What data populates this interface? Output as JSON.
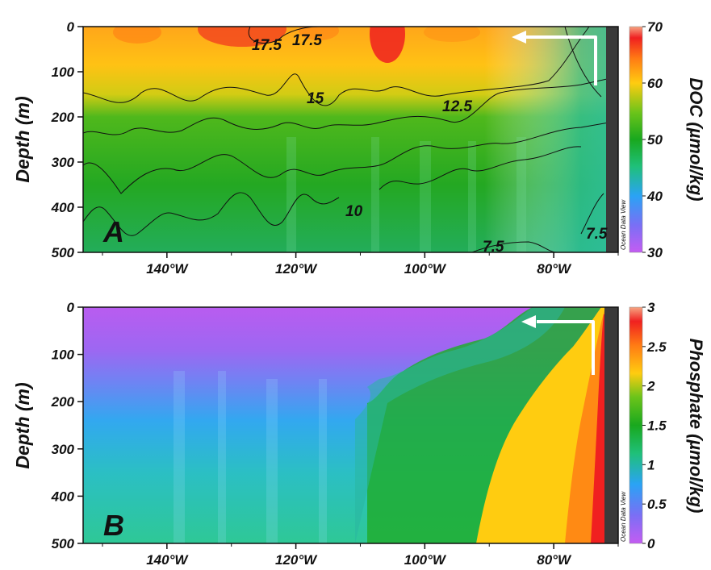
{
  "chart_data": [
    {
      "type": "heatmap",
      "panel_label": "A",
      "ylabel": "Depth (m)",
      "colorbar_label": "DOC (µmol/kg)",
      "colorbar_ticks": [
        30,
        40,
        50,
        60,
        70
      ],
      "x_ticks": [
        "140°W",
        "120°W",
        "100°W",
        "80°W"
      ],
      "y_ticks": [
        "0",
        "100",
        "200",
        "300",
        "400",
        "500"
      ],
      "xlim": [
        -153,
        -70
      ],
      "ylim": [
        500,
        0
      ],
      "contour_labels": [
        "17.5",
        "17.5",
        "15",
        "12.5",
        "10",
        "7.5",
        "7.5"
      ],
      "watermark": "Ocean Data View"
    },
    {
      "type": "heatmap",
      "panel_label": "B",
      "ylabel": "Depth (m)",
      "colorbar_label": "Phosphate (µmol/kg)",
      "colorbar_ticks": [
        0,
        0.5,
        1,
        1.5,
        2,
        2.5,
        3
      ],
      "x_ticks": [
        "140°W",
        "120°W",
        "100°W",
        "80°W"
      ],
      "y_ticks": [
        "0",
        "100",
        "200",
        "300",
        "400",
        "500"
      ],
      "xlim": [
        -153,
        -70
      ],
      "ylim": [
        500,
        0
      ],
      "watermark": "Ocean Data View"
    }
  ]
}
